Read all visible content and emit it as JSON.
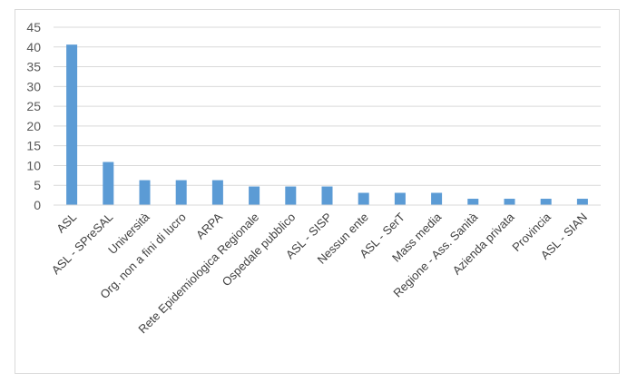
{
  "chart_data": {
    "type": "bar",
    "title": "",
    "xlabel": "",
    "ylabel": "",
    "ylim": [
      0,
      45
    ],
    "yticks": [
      0,
      5,
      10,
      15,
      20,
      25,
      30,
      35,
      40,
      45
    ],
    "grid": true,
    "legend": "none",
    "bar_color": "#5B9BD5",
    "categories": [
      "ASL",
      "ASL - SPreSAL",
      "Università",
      "Org. non a fini di lucro",
      "ARPA",
      "Rete Epidemiologica Regionale",
      "Ospedale pubblico",
      "ASL - SISP",
      "Nessun ente",
      "ASL - SerT",
      "Mass media",
      "Regione - Ass. Sanità",
      "Azienda privata",
      "Provincia",
      "ASL - SIAN"
    ],
    "values": [
      40.6,
      10.9,
      6.3,
      6.3,
      6.3,
      4.7,
      4.7,
      4.7,
      3.1,
      3.1,
      3.1,
      1.6,
      1.6,
      1.6,
      1.6
    ]
  }
}
